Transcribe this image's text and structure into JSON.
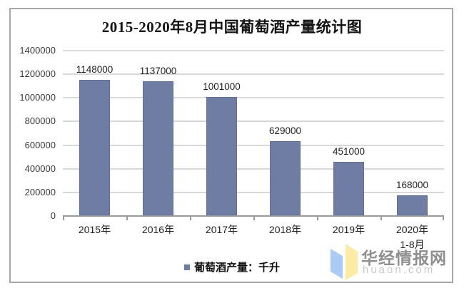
{
  "chart_data": {
    "type": "bar",
    "title": "2015-2020年8月中国葡萄酒产量统计图",
    "categories": [
      {
        "label": "2015年"
      },
      {
        "label": "2016年"
      },
      {
        "label": "2017年"
      },
      {
        "label": "2018年"
      },
      {
        "label": "2019年"
      },
      {
        "label": "2020年",
        "sublabel": "1-8月"
      }
    ],
    "series": [
      {
        "name": "葡萄酒产量：千升",
        "values": [
          1148000,
          1137000,
          1001000,
          629000,
          451000,
          168000
        ]
      }
    ],
    "xlabel": "",
    "ylabel": "",
    "ylim": [
      0,
      1400000
    ],
    "yticks": [
      0,
      200000,
      400000,
      600000,
      800000,
      1000000,
      1200000,
      1400000
    ],
    "grid": true,
    "legend_position": "bottom",
    "bar_color": "#6F7DA5"
  },
  "legend": {
    "label": "葡萄酒产量：千升"
  },
  "watermark": {
    "brand": "华经情报网",
    "domain": "huaon.com",
    "logo": "open-book-logo",
    "logo_colors": {
      "left_page": "#A9CBF5",
      "right_page": "#FBEBA4"
    }
  }
}
